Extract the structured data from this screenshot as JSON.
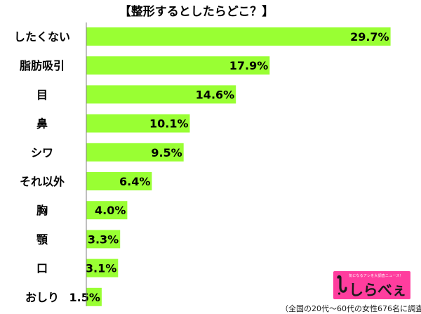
{
  "chart_data": {
    "type": "bar",
    "orientation": "horizontal",
    "title": "【整形するとしたらどこ？】",
    "categories": [
      "したくない",
      "脂肪吸引",
      "目",
      "鼻",
      "シワ",
      "それ以外",
      "胸",
      "顎",
      "口",
      "おしり"
    ],
    "values": [
      29.7,
      17.9,
      14.6,
      10.1,
      9.5,
      6.4,
      4.0,
      3.3,
      3.1,
      1.5
    ],
    "value_labels": [
      "29.7%",
      "17.9%",
      "14.6%",
      "10.1%",
      "9.5%",
      "6.4%",
      "4.0%",
      "3.3%",
      "3.1%",
      "1.5%"
    ],
    "xlim": [
      0,
      30
    ],
    "grid": false,
    "legend": "none",
    "bar_color": "#99ff33",
    "axis_color": "#7f7f7f"
  },
  "footnote": "（全国の20代～60代の女性676名に調査）",
  "logo": {
    "name": "しらべぇ",
    "tagline": "気になるアレを大調査ニュース！"
  }
}
